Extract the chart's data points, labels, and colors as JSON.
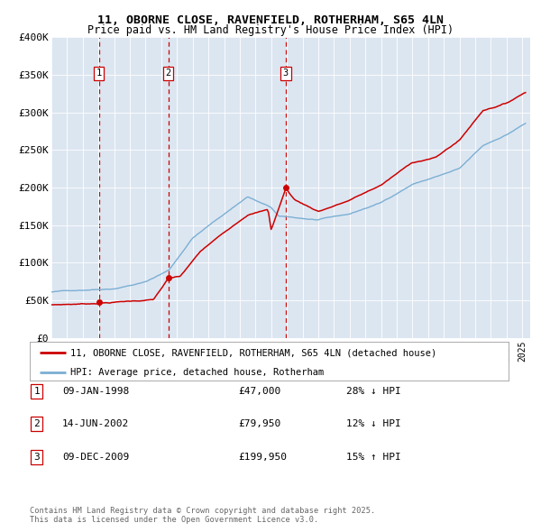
{
  "title_line1": "11, OBORNE CLOSE, RAVENFIELD, ROTHERHAM, S65 4LN",
  "title_line2": "Price paid vs. HM Land Registry's House Price Index (HPI)",
  "background_color": "#dce6f1",
  "plot_bg_color": "#dce6f1",
  "fig_bg_color": "#ffffff",
  "red_line_color": "#cc0000",
  "blue_line_color": "#7bafd4",
  "vline_color": "#cc0000",
  "ylim": [
    0,
    400000
  ],
  "yticks": [
    0,
    50000,
    100000,
    150000,
    200000,
    250000,
    300000,
    350000,
    400000
  ],
  "ytick_labels": [
    "£0",
    "£50K",
    "£100K",
    "£150K",
    "£200K",
    "£250K",
    "£300K",
    "£350K",
    "£400K"
  ],
  "sales": [
    {
      "date_num": 1998.03,
      "price": 47000,
      "label": "1"
    },
    {
      "date_num": 2002.45,
      "price": 79950,
      "label": "2"
    },
    {
      "date_num": 2009.93,
      "price": 199950,
      "label": "3"
    }
  ],
  "legend_red_label": "11, OBORNE CLOSE, RAVENFIELD, ROTHERHAM, S65 4LN (detached house)",
  "legend_blue_label": "HPI: Average price, detached house, Rotherham",
  "table_rows": [
    {
      "num": "1",
      "date": "09-JAN-1998",
      "price": "£47,000",
      "hpi": "28% ↓ HPI"
    },
    {
      "num": "2",
      "date": "14-JUN-2002",
      "price": "£79,950",
      "hpi": "12% ↓ HPI"
    },
    {
      "num": "3",
      "date": "09-DEC-2009",
      "price": "£199,950",
      "hpi": "15% ↑ HPI"
    }
  ],
  "footer_text": "Contains HM Land Registry data © Crown copyright and database right 2025.\nThis data is licensed under the Open Government Licence v3.0.",
  "hpi_anchors_t": [
    1995.0,
    1997.0,
    1999.0,
    2001.0,
    2002.5,
    2004.0,
    2007.5,
    2009.0,
    2009.5,
    2012.0,
    2014.0,
    2016.0,
    2018.0,
    2019.5,
    2021.0,
    2022.5,
    2024.0,
    2025.2
  ],
  "hpi_anchors_v": [
    61000,
    64000,
    67000,
    76000,
    92000,
    135000,
    190000,
    175000,
    163000,
    158000,
    165000,
    180000,
    205000,
    215000,
    225000,
    255000,
    270000,
    285000
  ],
  "red_anchors_t": [
    1995.0,
    1997.5,
    1998.03,
    2001.5,
    2002.45,
    2003.2,
    2004.5,
    2007.5,
    2008.8,
    2009.0,
    2009.93,
    2010.5,
    2012.0,
    2014.0,
    2016.0,
    2018.0,
    2019.5,
    2021.0,
    2022.5,
    2024.0,
    2025.2
  ],
  "red_anchors_v": [
    44000,
    46000,
    47000,
    52000,
    79950,
    82000,
    115000,
    165000,
    172000,
    145000,
    199950,
    185000,
    170000,
    185000,
    205000,
    235000,
    242000,
    265000,
    305000,
    315000,
    330000
  ]
}
